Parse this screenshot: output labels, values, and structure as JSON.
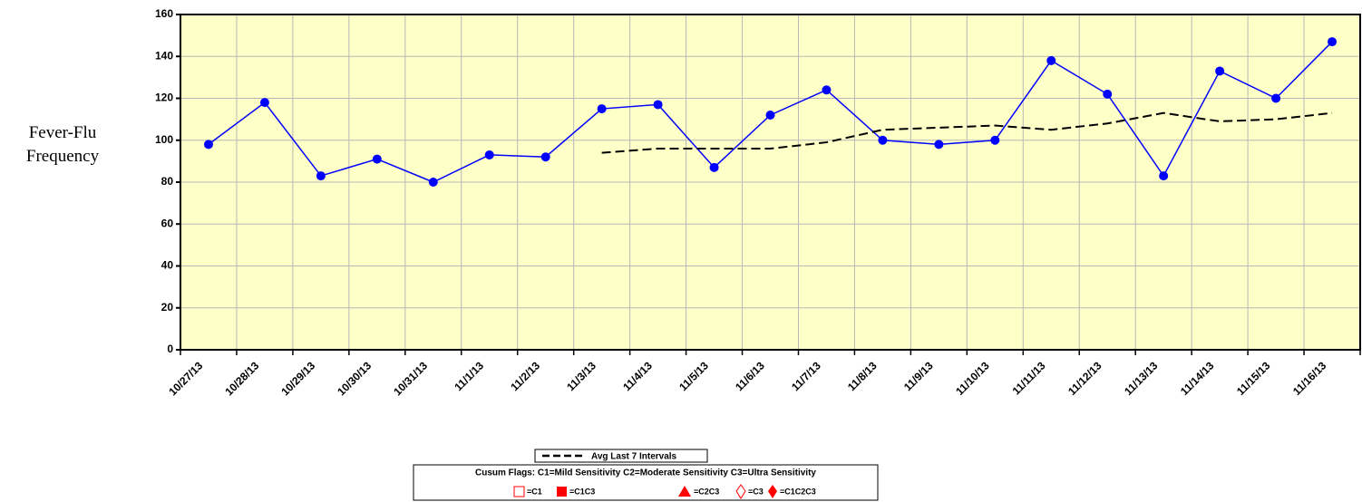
{
  "chart_data": {
    "type": "line",
    "y_label": "Fever-Flu Frequency",
    "categories": [
      "10/27/13",
      "10/28/13",
      "10/29/13",
      "10/30/13",
      "10/31/13",
      "11/1/13",
      "11/2/13",
      "11/3/13",
      "11/4/13",
      "11/5/13",
      "11/6/13",
      "11/7/13",
      "11/8/13",
      "11/9/13",
      "11/10/13",
      "11/11/13",
      "11/12/13",
      "11/13/13",
      "11/14/13",
      "11/15/13",
      "11/16/13"
    ],
    "series": [
      {
        "name": "Fever-Flu",
        "color": "#0000ff",
        "marker": "circle",
        "values": [
          98,
          118,
          83,
          91,
          80,
          93,
          92,
          115,
          117,
          87,
          112,
          124,
          100,
          98,
          100,
          138,
          122,
          83,
          133,
          120,
          147
        ]
      },
      {
        "name": "Avg Last 7 Intervals",
        "color": "#000000",
        "dashed": true,
        "values": [
          null,
          null,
          null,
          null,
          null,
          null,
          null,
          94,
          96,
          96,
          96,
          99,
          105,
          106,
          107,
          105,
          108,
          113,
          109,
          110,
          113
        ]
      }
    ],
    "ylim": [
      0,
      160
    ],
    "yticks": [
      0,
      20,
      40,
      60,
      80,
      100,
      120,
      140,
      160
    ],
    "grid": true,
    "cusum_legend": {
      "title": "Cusum Flags:  C1=Mild Sensitivity  C2=Moderate Sensitivity  C3=Ultra Sensitivity",
      "items": [
        "=C1",
        "=C1C3",
        "=C2C3",
        "=C3",
        "=C1C2C3"
      ]
    }
  }
}
